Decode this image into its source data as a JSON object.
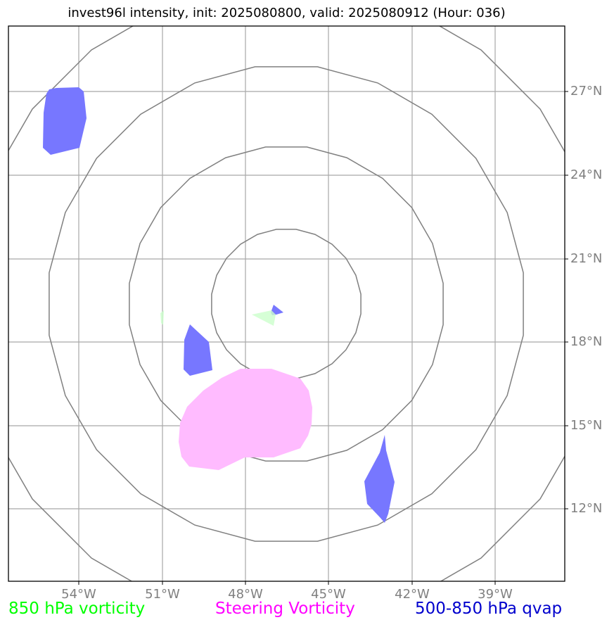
{
  "title": "invest96l intensity, init: 2025080800, valid: 2025080912 (Hour: 036)",
  "latitude_labels": [
    {
      "value": 27,
      "label": "27°N"
    },
    {
      "value": 24,
      "label": "24°N"
    },
    {
      "value": 21,
      "label": "21°N"
    },
    {
      "value": 18,
      "label": "18°N"
    },
    {
      "value": 15,
      "label": "15°N"
    },
    {
      "value": 12,
      "label": "12°N"
    }
  ],
  "longitude_labels": [
    {
      "value": -54,
      "label": "54°W"
    },
    {
      "value": -51,
      "label": "51°W"
    },
    {
      "value": -48,
      "label": "48°W"
    },
    {
      "value": -45,
      "label": "45°W"
    },
    {
      "value": -42,
      "label": "42°W"
    },
    {
      "value": -39,
      "label": "39°W"
    }
  ],
  "legend": [
    {
      "label": "850 hPa vorticity",
      "color": "#00ff00"
    },
    {
      "label": "Steering Vorticity",
      "color": "#ff00ff"
    },
    {
      "label": "500-850 hPa qvap",
      "color": "#0000cd"
    }
  ],
  "colors": {
    "vorticity_850": "#ccffcc",
    "steering_vorticity": "#ffbbff",
    "qvap": "#7777ff",
    "gridline": "#a8a8a8",
    "range_ring": "#808080"
  }
}
